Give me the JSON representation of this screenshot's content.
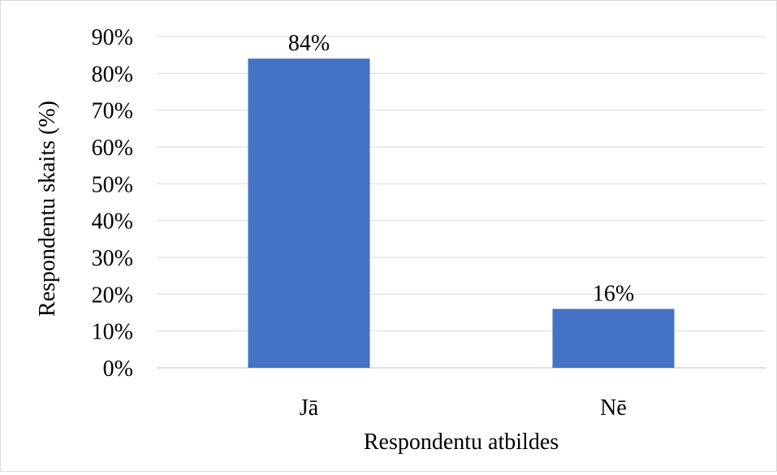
{
  "chart_data": {
    "type": "bar",
    "categories": [
      "Jā",
      "Nē"
    ],
    "values": [
      84,
      16
    ],
    "data_labels": [
      "84%",
      "16%"
    ],
    "xlabel": "Respondentu atbildes",
    "ylabel": "Respondentu skaits (%)",
    "ylim": [
      0,
      90
    ],
    "y_ticks": [
      0,
      10,
      20,
      30,
      40,
      50,
      60,
      70,
      80,
      90
    ],
    "y_tick_labels": [
      "0%",
      "10%",
      "20%",
      "30%",
      "40%",
      "50%",
      "60%",
      "70%",
      "80%",
      "90%"
    ],
    "grid": true,
    "legend": "none",
    "colors": {
      "bar": "#4472c4",
      "grid": "#d9d9d9",
      "axis": "#bfbfbf"
    }
  }
}
